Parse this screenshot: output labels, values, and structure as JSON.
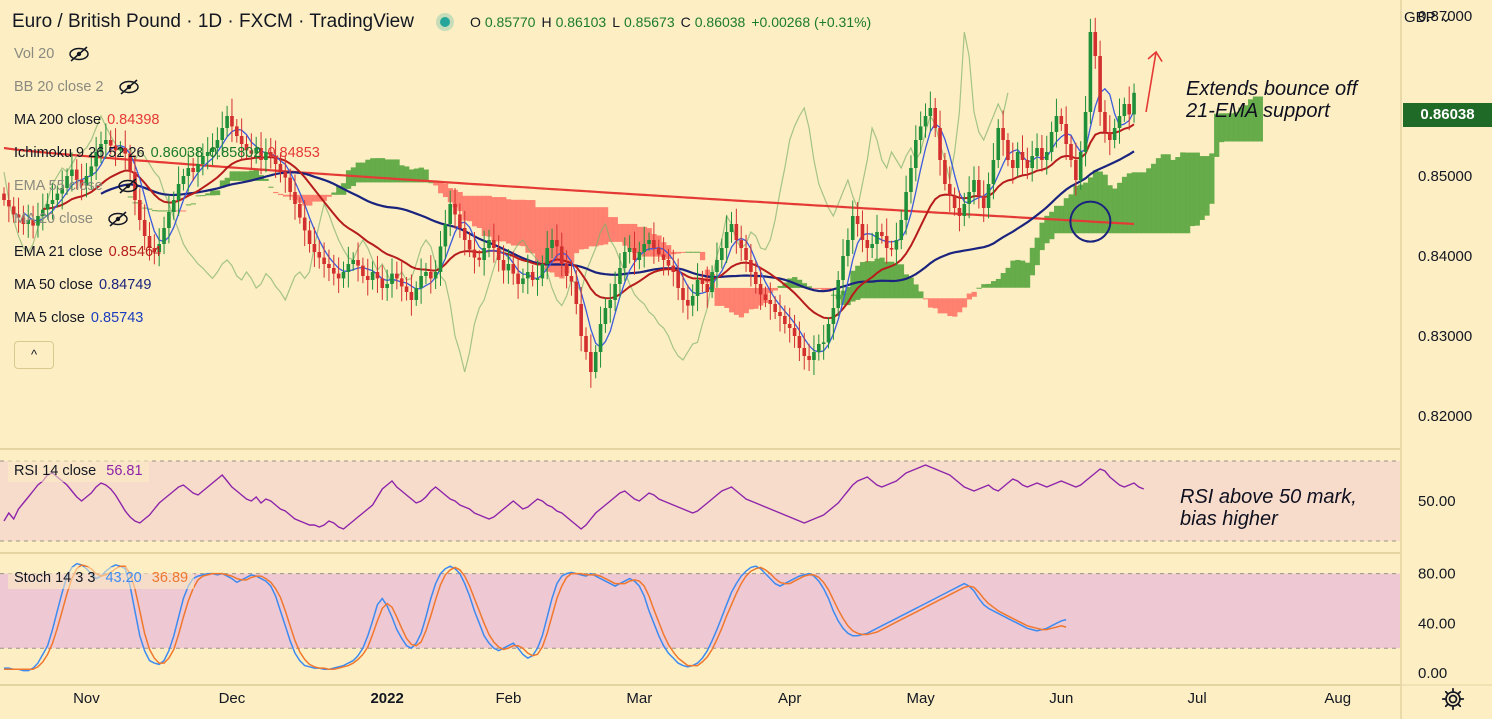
{
  "header": {
    "title": "Euro / British Pound · 1D · FXCM · TradingView",
    "open_label": "O",
    "open": "0.85770",
    "high_label": "H",
    "high": "0.86103",
    "low_label": "L",
    "low": "0.85673",
    "close_label": "C",
    "close": "0.86038",
    "change": "+0.00268 (+0.31%)"
  },
  "legend": {
    "vol": "Vol 20",
    "bb": "BB 20 close 2",
    "ma200": {
      "label": "MA 200 close",
      "value": "0.84398"
    },
    "ichimoku": {
      "label": "Ichimoku 9 26 52 26",
      "v1": "0.86038",
      "v2": "0.85802",
      "v3": "0.84853"
    },
    "ema55": "EMA 55 close",
    "ma20": "MA 20 close",
    "ema21": {
      "label": "EMA 21 close",
      "value": "0.85464"
    },
    "ma50": {
      "label": "MA 50 close",
      "value": "0.84749"
    },
    "ma5": {
      "label": "MA 5 close",
      "value": "0.85743"
    },
    "collapse": "^"
  },
  "currency": "GBP",
  "last_price": "0.86038",
  "rsi_legend": {
    "label": "RSI 14 close",
    "value": "56.81"
  },
  "stoch_legend": {
    "label": "Stoch 14 3 3",
    "k": "43.20",
    "d": "36.89"
  },
  "notes": {
    "price_line1": "Extends bounce off",
    "price_line2": "21-EMA support",
    "rsi_line1": "RSI above 50 mark,",
    "rsi_line2": "bias higher"
  },
  "colors": {
    "bg": "#fdefc3",
    "up": "#1f8f3a",
    "down": "#d32f2f",
    "ema21": "#b71c1c",
    "ma50": "#1a237e",
    "ma200": "#e53935",
    "ma5": "#3b5bdb",
    "rsi": "#8e24aa",
    "stochK": "#3d8bf0",
    "stochD": "#f0782e",
    "cloud_bull": "#5fa845",
    "cloud_bear": "#ff7a6b"
  },
  "chart_data": [
    {
      "type": "candlestick",
      "ylim": [
        0.816,
        0.872
      ],
      "yticks": [
        "0.87000",
        "0.85000",
        "0.84000",
        "0.83000",
        "0.82000"
      ],
      "xticks": [
        "Nov",
        "Dec",
        "2022",
        "Feb",
        "Mar",
        "Apr",
        "May",
        "Jun",
        "Jul",
        "Aug"
      ],
      "first_open": 0.8478,
      "closes": [
        0.847,
        0.8462,
        0.8452,
        0.8448,
        0.844,
        0.8445,
        0.8438,
        0.845,
        0.8458,
        0.8465,
        0.847,
        0.8478,
        0.8485,
        0.85,
        0.8508,
        0.8495,
        0.8488,
        0.85,
        0.8512,
        0.853,
        0.854,
        0.8545,
        0.8538,
        0.8532,
        0.8535,
        0.8528,
        0.8505,
        0.847,
        0.8445,
        0.8425,
        0.841,
        0.8405,
        0.8415,
        0.8435,
        0.8455,
        0.847,
        0.849,
        0.85,
        0.851,
        0.8505,
        0.8515,
        0.8525,
        0.853,
        0.8535,
        0.8545,
        0.856,
        0.8575,
        0.8562,
        0.855,
        0.854,
        0.8532,
        0.8528,
        0.8535,
        0.852,
        0.853,
        0.8525,
        0.8515,
        0.8505,
        0.8498,
        0.848,
        0.8465,
        0.8448,
        0.8432,
        0.8415,
        0.8405,
        0.8398,
        0.839,
        0.8385,
        0.8378,
        0.8372,
        0.838,
        0.839,
        0.8395,
        0.8388,
        0.8375,
        0.837,
        0.838,
        0.8372,
        0.836,
        0.8365,
        0.8378,
        0.8372,
        0.8362,
        0.8355,
        0.8345,
        0.836,
        0.8375,
        0.838,
        0.8372,
        0.838,
        0.8412,
        0.844,
        0.8465,
        0.8452,
        0.8435,
        0.842,
        0.8408,
        0.8398,
        0.8395,
        0.841,
        0.842,
        0.841,
        0.8395,
        0.8382,
        0.839,
        0.8378,
        0.8365,
        0.8372,
        0.838,
        0.837,
        0.8372,
        0.839,
        0.841,
        0.842,
        0.8412,
        0.839,
        0.8375,
        0.8368,
        0.834,
        0.83,
        0.828,
        0.8255,
        0.828,
        0.8315,
        0.8335,
        0.8345,
        0.8365,
        0.8385,
        0.8405,
        0.841,
        0.8395,
        0.8405,
        0.8415,
        0.842,
        0.841,
        0.8402,
        0.8395,
        0.8388,
        0.838,
        0.836,
        0.8345,
        0.8338,
        0.835,
        0.837,
        0.8365,
        0.8355,
        0.838,
        0.8395,
        0.841,
        0.843,
        0.844,
        0.842,
        0.841,
        0.8395,
        0.838,
        0.8365,
        0.8352,
        0.8345,
        0.834,
        0.833,
        0.8325,
        0.8315,
        0.831,
        0.83,
        0.8285,
        0.8275,
        0.827,
        0.828,
        0.829,
        0.8292,
        0.8315,
        0.8335,
        0.837,
        0.84,
        0.842,
        0.845,
        0.844,
        0.842,
        0.841,
        0.8415,
        0.843,
        0.8425,
        0.841,
        0.8408,
        0.842,
        0.8445,
        0.848,
        0.851,
        0.8545,
        0.8562,
        0.8575,
        0.8585,
        0.856,
        0.852,
        0.849,
        0.8475,
        0.846,
        0.845,
        0.8465,
        0.848,
        0.8495,
        0.8475,
        0.846,
        0.849,
        0.852,
        0.856,
        0.8545,
        0.852,
        0.851,
        0.853,
        0.852,
        0.851,
        0.8525,
        0.8535,
        0.852,
        0.853,
        0.8555,
        0.8575,
        0.8565,
        0.854,
        0.852,
        0.8495,
        0.853,
        0.858,
        0.868,
        0.865,
        0.858,
        0.8555,
        0.8545,
        0.856,
        0.8575,
        0.859,
        0.8577,
        0.8604
      ],
      "series": [
        {
          "name": "MA 200 close",
          "end": 0.84398
        },
        {
          "name": "EMA 21 close",
          "end": 0.85464
        },
        {
          "name": "MA 50 close",
          "end": 0.84749
        },
        {
          "name": "MA 5 close",
          "end": 0.85743
        },
        {
          "name": "Ichimoku 9 26 52 26"
        }
      ],
      "last_close": 0.86038
    },
    {
      "type": "line",
      "name": "RSI 14 close",
      "ylim": [
        25,
        75
      ],
      "yticks": [
        "50.00"
      ],
      "bands": [
        30,
        70
      ],
      "values": [
        40,
        44,
        41,
        46,
        49,
        52,
        55,
        58,
        60,
        63,
        64,
        62,
        60,
        58,
        55,
        52,
        50,
        52,
        54,
        57,
        59,
        58,
        56,
        53,
        49,
        45,
        42,
        40,
        39,
        41,
        43,
        46,
        49,
        51,
        53,
        55,
        57,
        58,
        56,
        54,
        53,
        55,
        57,
        59,
        61,
        63,
        60,
        57,
        55,
        53,
        51,
        50,
        52,
        49,
        51,
        50,
        48,
        46,
        45,
        43,
        41,
        40,
        39,
        38,
        38,
        37,
        38,
        40,
        39,
        37,
        36,
        38,
        40,
        42,
        44,
        46,
        48,
        52,
        56,
        58,
        60,
        57,
        55,
        53,
        51,
        49,
        50,
        52,
        55,
        57,
        55,
        53,
        51,
        50,
        48,
        47,
        46,
        44,
        43,
        42,
        41,
        42,
        44,
        46,
        48,
        50,
        48,
        46,
        47,
        49,
        51,
        50,
        48,
        47,
        45,
        44,
        42,
        40,
        38,
        36,
        38,
        41,
        44,
        46,
        48,
        50,
        52,
        54,
        55,
        53,
        51,
        50,
        52,
        54,
        53,
        51,
        50,
        49,
        48,
        47,
        46,
        45,
        44,
        45,
        47,
        49,
        51,
        53,
        55,
        56,
        57,
        55,
        53,
        51,
        50,
        49,
        48,
        47,
        46,
        45,
        44,
        43,
        42,
        41,
        40,
        39,
        40,
        41,
        42,
        43,
        45,
        47,
        49,
        52,
        55,
        58,
        60,
        61,
        62,
        60,
        58,
        57,
        58,
        59,
        60,
        62,
        64,
        65,
        66,
        67,
        68,
        67,
        66,
        65,
        64,
        63,
        61,
        59,
        57,
        56,
        55,
        56,
        57,
        58,
        56,
        55,
        57,
        59,
        61,
        60,
        58,
        57,
        58,
        59,
        58,
        57,
        58,
        59,
        60,
        59,
        58,
        57,
        58,
        60,
        62,
        64,
        66,
        65,
        62,
        60,
        58,
        57,
        58,
        59,
        57,
        56
      ]
    },
    {
      "type": "line",
      "name": "Stoch 14 3 3",
      "ylim": [
        -8,
        95
      ],
      "yticks": [
        "80.00",
        "40.00",
        "0.00"
      ],
      "bands": [
        20,
        80
      ],
      "series": [
        {
          "name": "%K",
          "values": [
            4,
            4,
            3,
            3,
            2,
            2,
            4,
            8,
            15,
            22,
            35,
            50,
            65,
            78,
            85,
            88,
            87,
            84,
            80,
            76,
            78,
            82,
            85,
            87,
            86,
            84,
            70,
            50,
            30,
            18,
            10,
            8,
            7,
            10,
            18,
            30,
            45,
            60,
            70,
            76,
            78,
            79,
            80,
            80,
            79,
            80,
            78,
            76,
            73,
            75,
            77,
            79,
            78,
            76,
            74,
            70,
            62,
            50,
            38,
            26,
            16,
            10,
            6,
            5,
            4,
            4,
            3,
            3,
            4,
            5,
            6,
            8,
            10,
            14,
            20,
            30,
            42,
            55,
            60,
            54,
            45,
            35,
            28,
            22,
            20,
            24,
            32,
            45,
            60,
            72,
            80,
            84,
            86,
            84,
            80,
            72,
            62,
            50,
            40,
            30,
            24,
            20,
            18,
            20,
            22,
            24,
            20,
            15,
            12,
            14,
            20,
            30,
            45,
            60,
            72,
            78,
            80,
            81,
            80,
            79,
            78,
            80,
            78,
            76,
            74,
            72,
            70,
            72,
            74,
            76,
            74,
            70,
            62,
            50,
            40,
            30,
            22,
            16,
            12,
            8,
            6,
            5,
            6,
            8,
            12,
            18,
            26,
            35,
            45,
            55,
            65,
            72,
            78,
            82,
            85,
            86,
            84,
            80,
            76,
            72,
            70,
            72,
            74,
            76,
            78,
            79,
            80,
            78,
            74,
            68,
            60,
            50,
            42,
            36,
            32,
            30,
            30,
            31,
            32,
            34,
            36,
            38,
            40,
            42,
            44,
            46,
            48,
            50,
            52,
            54,
            56,
            58,
            60,
            62,
            64,
            66,
            68,
            70,
            72,
            70,
            66,
            60,
            55,
            52,
            50,
            48,
            46,
            44,
            42,
            40,
            38,
            36,
            35,
            34,
            35,
            36,
            38,
            40,
            42,
            43
          ],
          "end": 43.2
        },
        {
          "name": "%D",
          "values": [
            3,
            3,
            3,
            3,
            3,
            3,
            3,
            5,
            9,
            15,
            24,
            36,
            50,
            64,
            76,
            84,
            87,
            86,
            84,
            80,
            78,
            79,
            81,
            84,
            86,
            86,
            80,
            68,
            50,
            32,
            19,
            12,
            8,
            8,
            12,
            19,
            31,
            45,
            58,
            68,
            75,
            78,
            79,
            80,
            80,
            80,
            79,
            78,
            76,
            75,
            75,
            77,
            78,
            78,
            76,
            73,
            68,
            61,
            50,
            38,
            26,
            17,
            11,
            7,
            5,
            4,
            4,
            3,
            3,
            4,
            5,
            6,
            8,
            11,
            15,
            21,
            31,
            42,
            52,
            56,
            53,
            45,
            36,
            28,
            23,
            22,
            25,
            34,
            46,
            59,
            71,
            79,
            83,
            85,
            83,
            78,
            70,
            60,
            50,
            40,
            31,
            25,
            21,
            19,
            20,
            22,
            22,
            20,
            16,
            14,
            15,
            21,
            32,
            46,
            60,
            70,
            77,
            80,
            80,
            80,
            79,
            79,
            79,
            78,
            76,
            74,
            72,
            72,
            72,
            74,
            75,
            74,
            70,
            62,
            51,
            41,
            31,
            23,
            17,
            12,
            9,
            6,
            6,
            6,
            9,
            13,
            19,
            27,
            36,
            46,
            55,
            64,
            72,
            78,
            82,
            84,
            85,
            83,
            80,
            76,
            73,
            72,
            72,
            74,
            76,
            78,
            79,
            79,
            77,
            73,
            67,
            59,
            51,
            44,
            38,
            34,
            32,
            31,
            31,
            32,
            33,
            35,
            37,
            39,
            41,
            43,
            45,
            47,
            49,
            51,
            53,
            55,
            57,
            59,
            61,
            63,
            65,
            67,
            69,
            70,
            69,
            65,
            60,
            56,
            53,
            50,
            48,
            46,
            44,
            42,
            40,
            38,
            37,
            36,
            35,
            35,
            36,
            37,
            38,
            37
          ],
          "end": 36.89
        }
      ]
    }
  ]
}
